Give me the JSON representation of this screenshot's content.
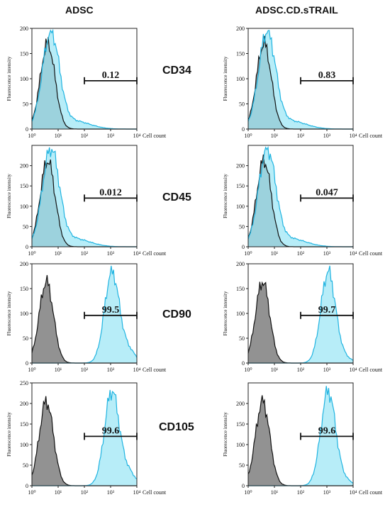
{
  "column_titles": [
    "ADSC",
    "ADSC.CD.sTRAIL"
  ],
  "row_markers": [
    "CD34",
    "CD45",
    "CD90",
    "CD105"
  ],
  "colors": {
    "control_fill": "#8c8c8c",
    "control_stroke": "#111111",
    "sample_fill": "#9fe7f6",
    "sample_stroke": "#1fb3e0"
  },
  "chart_data": [
    {
      "type": "area",
      "row": "CD34",
      "column": "ADSC",
      "ylabel": "Fluorescence intensity",
      "xlabel": "Cell count",
      "x_scale": "log",
      "xlim": [
        1,
        10000
      ],
      "ylim": [
        0,
        200
      ],
      "yticks": [
        "0",
        "50",
        "100",
        "150",
        "200"
      ],
      "xticks": [
        "10⁰",
        "10¹",
        "10²",
        "10³",
        "10⁴"
      ],
      "gate_value": "0.12",
      "gate_range": [
        100,
        10000
      ],
      "profile": "neg-overlap"
    },
    {
      "type": "area",
      "row": "CD34",
      "column": "ADSC.CD.sTRAIL",
      "ylabel": "Fluorescence intensity",
      "xlabel": "Cell count",
      "x_scale": "log",
      "xlim": [
        1,
        10000
      ],
      "ylim": [
        0,
        200
      ],
      "yticks": [
        "0",
        "50",
        "100",
        "150",
        "200"
      ],
      "xticks": [
        "10⁰",
        "10¹",
        "10²",
        "10³",
        "10⁴"
      ],
      "gate_value": "0.83",
      "gate_range": [
        100,
        10000
      ],
      "profile": "neg-overlap"
    },
    {
      "type": "area",
      "row": "CD45",
      "column": "ADSC",
      "ylabel": "Fluorescence intensity",
      "xlabel": "Cell count",
      "x_scale": "log",
      "xlim": [
        1,
        10000
      ],
      "ylim": [
        0,
        250
      ],
      "yticks": [
        "0",
        "50",
        "100",
        "150",
        "200"
      ],
      "xticks": [
        "10⁰",
        "10¹",
        "10²",
        "10³",
        "10⁴"
      ],
      "gate_value": "0.012",
      "gate_range": [
        100,
        10000
      ],
      "profile": "neg-overlap"
    },
    {
      "type": "area",
      "row": "CD45",
      "column": "ADSC.CD.sTRAIL",
      "ylabel": "Fluorescence intensity",
      "xlabel": "Cell count",
      "x_scale": "log",
      "xlim": [
        1,
        10000
      ],
      "ylim": [
        0,
        250
      ],
      "yticks": [
        "0",
        "50",
        "100",
        "150",
        "200"
      ],
      "xticks": [
        "10⁰",
        "10¹",
        "10²",
        "10³",
        "10⁴"
      ],
      "gate_value": "0.047",
      "gate_range": [
        100,
        10000
      ],
      "profile": "neg-overlap"
    },
    {
      "type": "area",
      "row": "CD90",
      "column": "ADSC",
      "ylabel": "Fluorescence intensity",
      "xlabel": "Cell count",
      "x_scale": "log",
      "xlim": [
        1,
        10000
      ],
      "ylim": [
        0,
        200
      ],
      "yticks": [
        "0",
        "50",
        "100",
        "150",
        "200"
      ],
      "xticks": [
        "10⁰",
        "10¹",
        "10²",
        "10³",
        "10⁴"
      ],
      "gate_value": "99.5",
      "gate_range": [
        100,
        10000
      ],
      "profile": "pos-shift"
    },
    {
      "type": "area",
      "row": "CD90",
      "column": "ADSC.CD.sTRAIL",
      "ylabel": "Fluorescence intensity",
      "xlabel": "Cell count",
      "x_scale": "log",
      "xlim": [
        1,
        10000
      ],
      "ylim": [
        0,
        200
      ],
      "yticks": [
        "0",
        "50",
        "100",
        "150",
        "200"
      ],
      "xticks": [
        "10⁰",
        "10¹",
        "10²",
        "10³",
        "10⁴"
      ],
      "gate_value": "99.7",
      "gate_range": [
        100,
        10000
      ],
      "profile": "pos-shift"
    },
    {
      "type": "area",
      "row": "CD105",
      "column": "ADSC",
      "ylabel": "Fluorescence intensity",
      "xlabel": "Cell count",
      "x_scale": "log",
      "xlim": [
        1,
        10000
      ],
      "ylim": [
        0,
        250
      ],
      "yticks": [
        "0",
        "50",
        "100",
        "150",
        "200",
        "250"
      ],
      "xticks": [
        "10⁰",
        "10¹",
        "10²",
        "10³",
        "10⁴"
      ],
      "gate_value": "99.6",
      "gate_range": [
        100,
        10000
      ],
      "profile": "pos-shift"
    },
    {
      "type": "area",
      "row": "CD105",
      "column": "ADSC.CD.sTRAIL",
      "ylabel": "Fluorescence intensity",
      "xlabel": "Cell count",
      "x_scale": "log",
      "xlim": [
        1,
        10000
      ],
      "ylim": [
        0,
        250
      ],
      "yticks": [
        "0",
        "50",
        "100",
        "150",
        "200"
      ],
      "xticks": [
        "10⁰",
        "10¹",
        "10²",
        "10³",
        "10⁴"
      ],
      "gate_value": "99.6",
      "gate_range": [
        100,
        10000
      ],
      "profile": "pos-shift"
    }
  ]
}
